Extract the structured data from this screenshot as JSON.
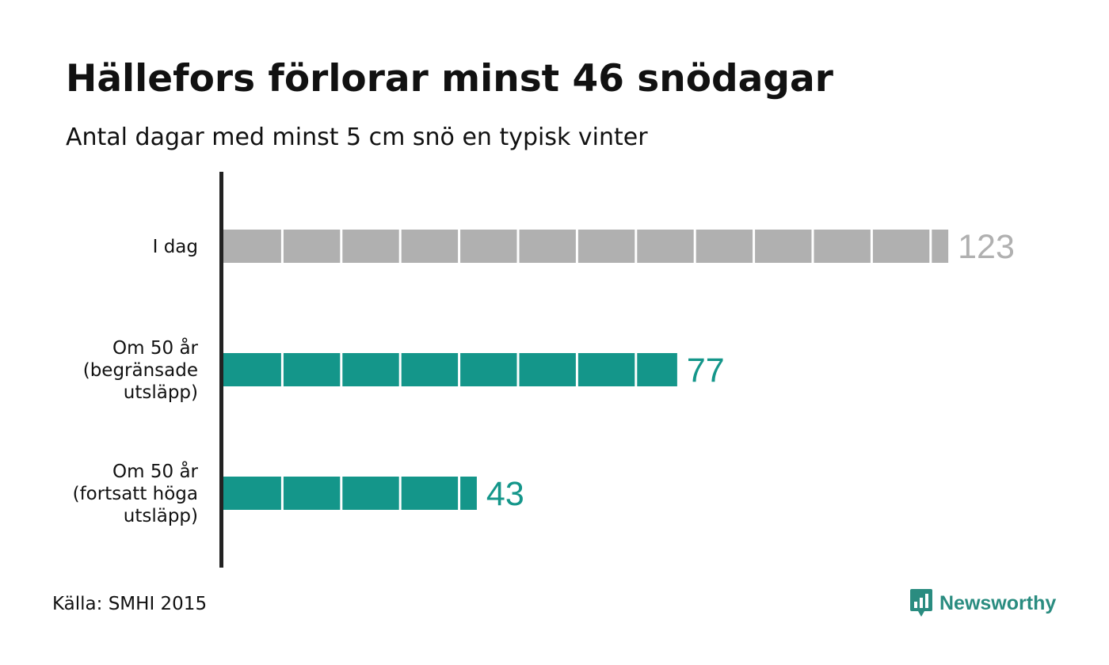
{
  "chart_data": {
    "type": "bar",
    "orientation": "horizontal",
    "title": "Hällefors förlorar minst 46 snödagar",
    "subtitle": "Antal dagar med minst 5 cm snö en typisk vinter",
    "categories": [
      "I dag",
      "Om 50 år (begränsade utsläpp)",
      "Om 50 år (fortsatt höga utsläpp)"
    ],
    "category_lines": [
      [
        "I dag"
      ],
      [
        "Om 50 år",
        "(begränsade",
        "utsläpp)"
      ],
      [
        "Om 50 år",
        "(fortsatt höga",
        "utsläpp)"
      ]
    ],
    "values": [
      123,
      77,
      43
    ],
    "value_labels": [
      "123",
      "77",
      "43"
    ],
    "bar_colors": [
      "#b0b0b0",
      "#14968a",
      "#14968a"
    ],
    "label_colors": [
      "#b0b0b0",
      "#14968a",
      "#14968a"
    ],
    "segment_size": 10,
    "xlim": [
      0,
      123
    ],
    "grid": false,
    "legend": "none"
  },
  "source": "Källa: SMHI 2015",
  "brand": {
    "name": "Newsworthy",
    "icon": "newsworthy-logo-icon",
    "color": "#2a8c80"
  }
}
